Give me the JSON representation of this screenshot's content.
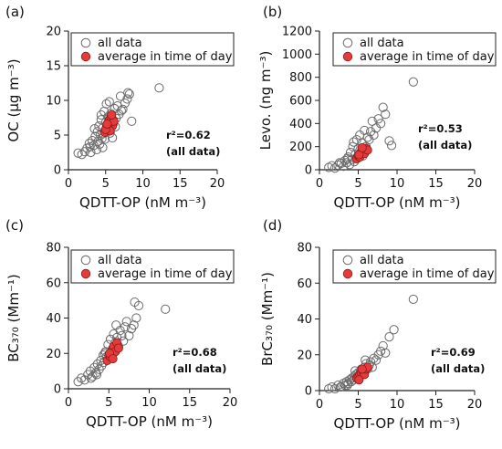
{
  "figure": {
    "x_axis_label": "QDTT-OP (nM m⁻³)"
  },
  "legend": {
    "all_data": "all data",
    "average": "average in time of day"
  },
  "colors": {
    "all_data_edge": "#6b6b6b",
    "average_fill": "#e53b3b",
    "average_edge": "#8a1a1a"
  },
  "chart_data": [
    {
      "type": "scatter",
      "panel_label": "(a)",
      "ylabel": "OC (µg m⁻³)",
      "xlabel": "QDTT-OP (nM m⁻³)",
      "xlim": [
        0,
        20
      ],
      "ylim": [
        0,
        20
      ],
      "xticks": [
        0,
        5,
        10,
        15,
        20
      ],
      "yticks": [
        0,
        5,
        10,
        15,
        20
      ],
      "legend_placement": "top-left",
      "stat_lines": [
        "r²=0.62",
        "(all data)"
      ],
      "series": [
        {
          "name": "all data",
          "x": [
            1.3,
            1.8,
            2.2,
            2.5,
            2.8,
            3.0,
            3.2,
            3.4,
            3.6,
            3.8,
            3.9,
            4.0,
            4.1,
            4.2,
            4.3,
            4.4,
            4.5,
            4.6,
            4.7,
            4.8,
            4.9,
            5.0,
            5.1,
            5.2,
            5.3,
            5.4,
            5.5,
            5.6,
            5.7,
            5.8,
            6.0,
            6.2,
            6.4,
            6.6,
            6.8,
            7.0,
            7.3,
            7.6,
            7.9,
            8.2,
            8.5,
            3.5,
            4.6,
            5.9,
            2.9,
            4.4,
            6.3,
            7.1,
            8.0,
            12.2
          ],
          "y": [
            2.4,
            2.2,
            2.6,
            3.1,
            3.8,
            2.5,
            4.2,
            3.5,
            4.8,
            2.9,
            5.5,
            4.1,
            6.3,
            3.7,
            5.0,
            7.2,
            4.5,
            6.0,
            5.2,
            8.4,
            4.4,
            6.8,
            9.5,
            5.8,
            7.6,
            6.4,
            9.8,
            5.3,
            8.1,
            7.0,
            6.6,
            8.8,
            7.4,
            9.2,
            8.0,
            10.6,
            8.7,
            9.6,
            10.2,
            10.9,
            7.0,
            5.9,
            3.2,
            4.6,
            3.3,
            7.9,
            6.2,
            8.5,
            11.1,
            11.8
          ]
        },
        {
          "name": "average in time of day",
          "x": [
            4.9,
            5.1,
            5.3,
            5.5,
            5.7,
            5.9,
            6.1,
            5.4,
            5.6,
            5.0,
            5.2,
            5.8
          ],
          "y": [
            5.4,
            6.1,
            6.7,
            7.2,
            7.6,
            6.3,
            7.0,
            5.9,
            5.6,
            5.8,
            6.6,
            7.9
          ]
        }
      ]
    },
    {
      "type": "scatter",
      "panel_label": "(b)",
      "ylabel": "Levo. (ng m⁻³)",
      "xlabel": "QDTT-OP (nM m⁻³)",
      "xlim": [
        0,
        20
      ],
      "ylim": [
        0,
        1200
      ],
      "xticks": [
        0,
        5,
        10,
        15,
        20
      ],
      "yticks": [
        0,
        200,
        400,
        600,
        800,
        1000,
        1200
      ],
      "legend_placement": "top-left",
      "stat_lines": [
        "r²=0.53",
        "(all data)"
      ],
      "series": [
        {
          "name": "all data",
          "x": [
            1.2,
            1.6,
            2.0,
            2.4,
            2.8,
            3.1,
            3.3,
            3.5,
            3.7,
            3.9,
            4.0,
            4.2,
            4.3,
            4.5,
            4.6,
            4.8,
            4.9,
            5.0,
            5.2,
            5.3,
            5.5,
            5.6,
            5.8,
            6.0,
            6.2,
            6.4,
            6.6,
            6.8,
            7.0,
            7.3,
            7.6,
            7.9,
            8.2,
            8.5,
            9.0,
            9.3,
            3.6,
            4.4,
            5.7,
            2.6,
            12.1
          ],
          "y": [
            20,
            35,
            15,
            40,
            55,
            30,
            80,
            60,
            110,
            45,
            150,
            90,
            200,
            70,
            130,
            260,
            100,
            180,
            300,
            150,
            230,
            120,
            340,
            200,
            280,
            260,
            330,
            420,
            300,
            360,
            440,
            400,
            540,
            480,
            250,
            210,
            95,
            240,
            160,
            60,
            760
          ]
        },
        {
          "name": "average in time of day",
          "x": [
            4.8,
            5.0,
            5.2,
            5.4,
            5.6,
            5.8,
            6.0,
            6.2,
            5.1,
            5.5
          ],
          "y": [
            95,
            120,
            110,
            150,
            165,
            140,
            185,
            170,
            130,
            190
          ]
        }
      ]
    },
    {
      "type": "scatter",
      "panel_label": "(c)",
      "ylabel": "BC₃₇₀ (Mm⁻¹)",
      "xlabel": "QDTT-OP (nM m⁻³)",
      "xlim": [
        0,
        20
      ],
      "ylim": [
        0,
        80
      ],
      "xticks": [
        0,
        5,
        10,
        15,
        20
      ],
      "yticks": [
        0,
        20,
        40,
        60,
        80
      ],
      "legend_placement": "top-left",
      "stat_lines": [
        "r²=0.68",
        "(all data)"
      ],
      "series": [
        {
          "name": "all data",
          "x": [
            1.2,
            1.6,
            2.0,
            2.4,
            2.7,
            3.0,
            3.2,
            3.4,
            3.6,
            3.8,
            4.0,
            4.1,
            4.3,
            4.4,
            4.6,
            4.7,
            4.9,
            5.0,
            5.2,
            5.3,
            5.5,
            5.6,
            5.8,
            6.0,
            6.2,
            6.4,
            6.6,
            6.8,
            7.0,
            7.2,
            7.5,
            7.8,
            8.1,
            8.4,
            8.7,
            3.5,
            4.5,
            5.9,
            2.8,
            12.0,
            8.2
          ],
          "y": [
            4,
            6,
            5,
            8,
            10,
            7,
            12,
            9,
            14,
            11,
            16,
            13,
            19,
            15,
            21,
            18,
            25,
            17,
            28,
            20,
            23,
            31,
            26,
            29,
            24,
            33,
            30,
            27,
            35,
            38,
            30,
            34,
            36,
            40,
            47,
            8,
            20,
            36,
            6,
            45,
            49
          ]
        },
        {
          "name": "average in time of day",
          "x": [
            4.8,
            5.0,
            5.2,
            5.4,
            5.6,
            5.8,
            6.0,
            6.2,
            5.1,
            5.5
          ],
          "y": [
            16,
            19,
            18,
            22,
            24,
            21,
            26,
            23,
            20,
            17
          ]
        }
      ]
    },
    {
      "type": "scatter",
      "panel_label": "(d)",
      "ylabel": "BrC₃₇₀ (Mm⁻¹)",
      "xlabel": "QDTT-OP (nM m⁻³)",
      "xlim": [
        0,
        20
      ],
      "ylim": [
        0,
        80
      ],
      "xticks": [
        0,
        5,
        10,
        15,
        20
      ],
      "yticks": [
        0,
        20,
        40,
        60,
        80
      ],
      "legend_placement": "top-left",
      "stat_lines": [
        "r²=0.69",
        "(all data)"
      ],
      "series": [
        {
          "name": "all data",
          "x": [
            1.2,
            1.6,
            2.0,
            2.4,
            2.8,
            3.1,
            3.3,
            3.5,
            3.7,
            3.9,
            4.1,
            4.2,
            4.4,
            4.5,
            4.7,
            4.8,
            5.0,
            5.1,
            5.3,
            5.4,
            5.6,
            5.8,
            6.0,
            6.2,
            6.4,
            6.6,
            6.8,
            7.0,
            7.3,
            7.6,
            7.9,
            8.2,
            8.5,
            9.0,
            9.6,
            3.6,
            4.6,
            5.9,
            2.7,
            12.1
          ],
          "y": [
            1,
            2,
            1,
            3,
            2,
            4,
            3,
            5,
            4,
            6,
            5,
            7,
            6,
            8,
            9,
            7,
            10,
            8,
            11,
            12,
            9,
            13,
            15,
            12,
            14,
            16,
            13,
            18,
            17,
            20,
            22,
            25,
            21,
            30,
            34,
            3,
            11,
            17,
            2,
            51
          ]
        },
        {
          "name": "average in time of day",
          "x": [
            4.8,
            5.0,
            5.2,
            5.4,
            5.6,
            5.8,
            6.0,
            6.2,
            5.1,
            5.5
          ],
          "y": [
            7,
            8,
            9,
            10,
            11,
            9,
            12,
            13,
            6,
            12
          ]
        }
      ]
    }
  ]
}
